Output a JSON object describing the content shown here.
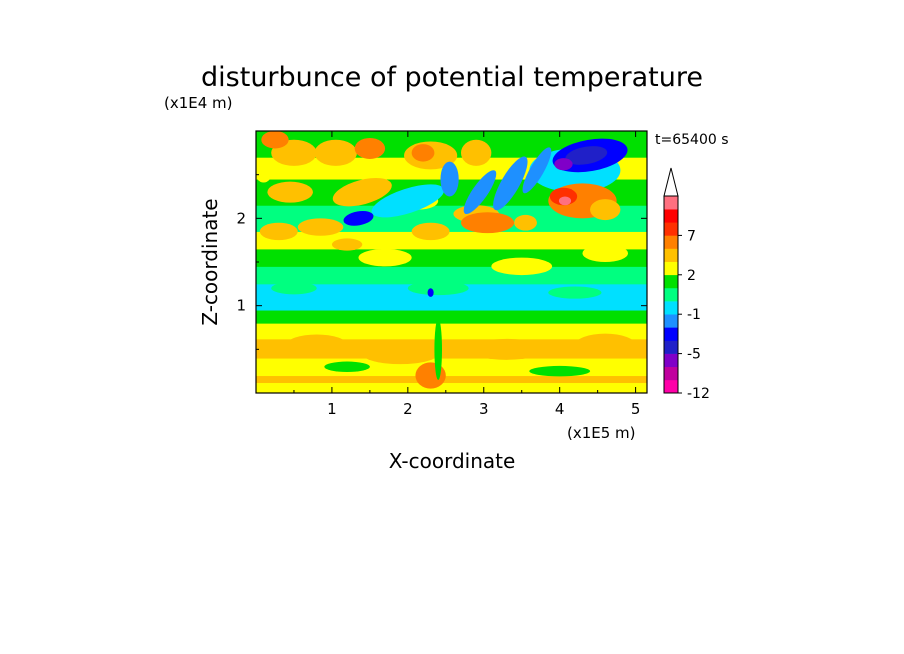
{
  "chart_data": {
    "type": "heatmap",
    "title": "disturbunce of potential temperature",
    "xlabel": "X-coordinate",
    "ylabel": "Z-coordinate",
    "x_unit": "(x1E5 m)",
    "y_unit": "(x1E4 m)",
    "time_label": "t=65400 s",
    "xlim": [
      0,
      5.15
    ],
    "ylim": [
      0,
      3.0
    ],
    "x_ticks": [
      1,
      2,
      3,
      4,
      5
    ],
    "y_ticks": [
      1,
      2
    ],
    "x_tick_labels": [
      "1",
      "2",
      "3",
      "4",
      "5"
    ],
    "y_tick_labels": [
      "1",
      "2"
    ],
    "colorbar": {
      "levels": [
        -12,
        -9,
        -7,
        -5,
        -3,
        -2,
        -1,
        0,
        1,
        2,
        3,
        5,
        7,
        9,
        11
      ],
      "colors": [
        "#ff00a8",
        "#c0009e",
        "#8000c8",
        "#2020c8",
        "#0000ff",
        "#1e90ff",
        "#00e0ff",
        "#00ff80",
        "#00e000",
        "#ffff00",
        "#ffc000",
        "#ff8000",
        "#ff3000",
        "#ff0000",
        "#ff7080",
        "#ffc0c0"
      ],
      "labels": [
        {
          "value": -12,
          "text": "-12"
        },
        {
          "value": -5,
          "text": "-5"
        },
        {
          "value": -1,
          "text": "-1"
        },
        {
          "value": 2,
          "text": "2"
        },
        {
          "value": 7,
          "text": "7"
        }
      ]
    }
  }
}
